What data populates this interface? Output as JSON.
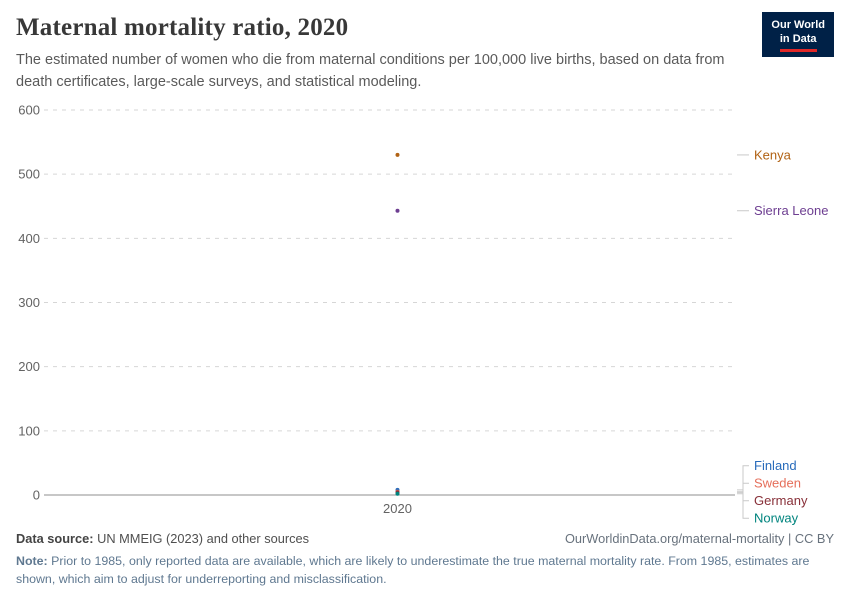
{
  "header": {
    "title": "Maternal mortality ratio, 2020",
    "subtitle": "The estimated number of women who die from maternal conditions per 100,000 live births, based on data from death certificates, large-scale surveys, and statistical modeling.",
    "logo": {
      "line1": "Our World",
      "line2": "in Data"
    }
  },
  "chart_data": {
    "type": "scatter",
    "x": [
      2020
    ],
    "xtick_label": "2020",
    "series": [
      {
        "name": "Kenya",
        "values": [
          530
        ],
        "color": "#B16214"
      },
      {
        "name": "Sierra Leone",
        "values": [
          443
        ],
        "color": "#6D3E91"
      },
      {
        "name": "Finland",
        "values": [
          8
        ],
        "color": "#286BBB"
      },
      {
        "name": "Sweden",
        "values": [
          5
        ],
        "color": "#E56E5A"
      },
      {
        "name": "Germany",
        "values": [
          4
        ],
        "color": "#883039"
      },
      {
        "name": "Norway",
        "values": [
          2
        ],
        "color": "#00847E"
      }
    ],
    "ylim": [
      0,
      600
    ],
    "yticks": [
      0,
      100,
      200,
      300,
      400,
      500,
      600
    ],
    "grid": true,
    "legend_position": "right",
    "colors": {
      "gridline": "#d6d6d6",
      "zero_line": "#8f8f8f",
      "tick_text": "#636363",
      "connector": "#c9c9c9"
    }
  },
  "footer": {
    "source_label": "Data source:",
    "source_text": " UN MMEIG (2023) and other sources",
    "citation": "OurWorldinData.org/maternal-mortality | CC BY",
    "note_label": "Note:",
    "note_text": " Prior to 1985, only reported data are available, which are likely to underestimate the true maternal mortality rate. From 1985, estimates are shown, which aim to adjust for underreporting and misclassification."
  }
}
